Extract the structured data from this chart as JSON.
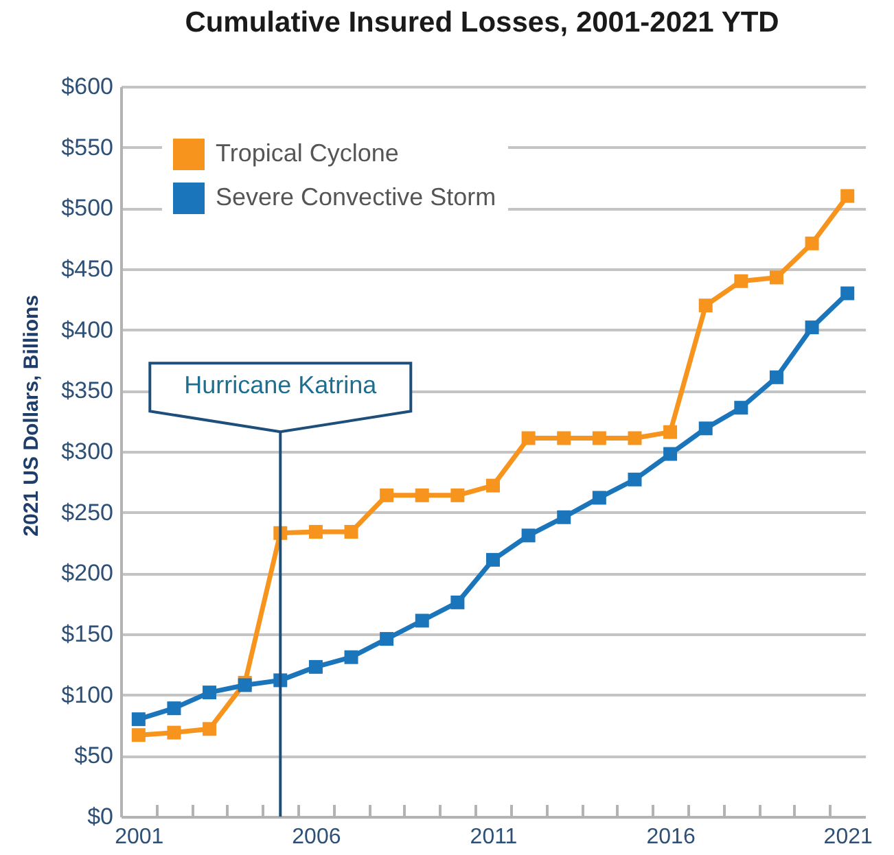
{
  "chart_data": {
    "type": "line",
    "title": "Cumulative Insured Losses, 2001-2021 YTD",
    "ylabel": "2021 US Dollars, Billions",
    "x": [
      2001,
      2002,
      2003,
      2004,
      2005,
      2006,
      2007,
      2008,
      2009,
      2010,
      2011,
      2012,
      2013,
      2014,
      2015,
      2016,
      2017,
      2018,
      2019,
      2020,
      2021
    ],
    "series": [
      {
        "name": "Tropical Cyclone",
        "color": "#f7941d",
        "values": [
          67,
          69,
          72,
          110,
          233,
          234,
          234,
          264,
          264,
          264,
          272,
          311,
          311,
          311,
          311,
          316,
          420,
          440,
          443,
          471,
          510
        ]
      },
      {
        "name": "Severe Convective Storm",
        "color": "#1b75bb",
        "values": [
          80,
          89,
          102,
          108,
          112,
          123,
          131,
          146,
          161,
          176,
          211,
          231,
          246,
          262,
          277,
          298,
          319,
          336,
          361,
          402,
          430
        ]
      }
    ],
    "xlim": [
      2000.5,
      2021.5
    ],
    "xticks": [
      2001,
      {
        "value": 2001.5,
        "label": null
      },
      {
        "value": 2002.5,
        "label": null
      },
      {
        "value": 2003.5,
        "label": null
      },
      {
        "value": 2004.5,
        "label": null
      },
      {
        "value": 2005.5,
        "label": null
      },
      2006,
      {
        "value": 2006.5,
        "label": null
      },
      {
        "value": 2007.5,
        "label": null
      },
      {
        "value": 2008.5,
        "label": null
      },
      {
        "value": 2009.5,
        "label": null
      },
      {
        "value": 2010.5,
        "label": null
      },
      2011,
      {
        "value": 2011.5,
        "label": null
      },
      {
        "value": 2012.5,
        "label": null
      },
      {
        "value": 2013.5,
        "label": null
      },
      {
        "value": 2014.5,
        "label": null
      },
      {
        "value": 2015.5,
        "label": null
      },
      2016,
      {
        "value": 2016.5,
        "label": null
      },
      {
        "value": 2017.5,
        "label": null
      },
      {
        "value": 2018.5,
        "label": null
      },
      {
        "value": 2019.5,
        "label": null
      },
      {
        "value": 2020.5,
        "label": null
      },
      2021
    ],
    "ylim": [
      0,
      600
    ],
    "yticks": [
      {
        "value": 0,
        "label": "$0"
      },
      {
        "value": 50,
        "label": "$50"
      },
      {
        "value": 100,
        "label": "$100"
      },
      {
        "value": 150,
        "label": "$150"
      },
      {
        "value": 200,
        "label": "$200"
      },
      {
        "value": 250,
        "label": "$250"
      },
      {
        "value": 300,
        "label": "$300"
      },
      {
        "value": 350,
        "label": "$350"
      },
      {
        "value": 400,
        "label": "$400"
      },
      {
        "value": 450,
        "label": "$450"
      },
      {
        "value": 500,
        "label": "$500"
      },
      {
        "value": 550,
        "label": "$550"
      },
      {
        "value": 600,
        "label": "$600"
      }
    ],
    "grid": "y",
    "legend": "top left",
    "marker": "square",
    "ref_lines": [
      {
        "axis": "x",
        "value": 2005,
        "label": "Hurricane Katrina",
        "color": "#1d4f7a"
      }
    ]
  }
}
